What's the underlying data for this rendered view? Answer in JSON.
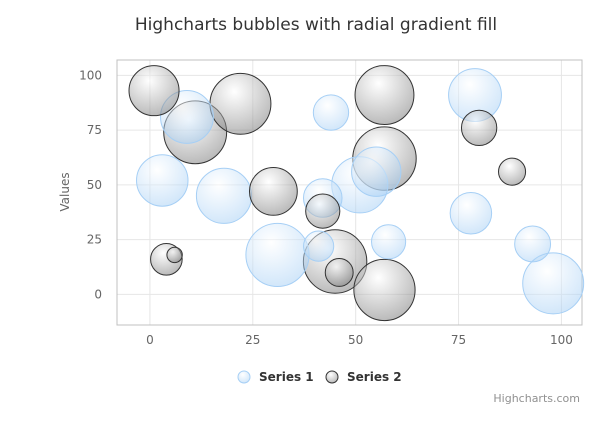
{
  "chart_data": {
    "type": "scatter",
    "subtype": "bubble",
    "title": "Highcharts bubbles with radial gradient fill",
    "xlabel": "",
    "ylabel": "Values",
    "xlim": [
      -8,
      105
    ],
    "ylim": [
      -14,
      107
    ],
    "xticks": [
      0,
      25,
      50,
      75,
      100
    ],
    "yticks": [
      0,
      25,
      50,
      75,
      100
    ],
    "grid": true,
    "legend_position": "bottom-center",
    "credits": "Highcharts.com",
    "series": [
      {
        "name": "Series 1",
        "color_center": "#ffffff",
        "color_edge": "#a6cff5",
        "stroke": "#a6cff5",
        "points": [
          {
            "x": 9,
            "y": 81,
            "z": 63
          },
          {
            "x": 98,
            "y": 5,
            "z": 89
          },
          {
            "x": 51,
            "y": 50,
            "z": 73
          },
          {
            "x": 41,
            "y": 22,
            "z": 14
          },
          {
            "x": 58,
            "y": 24,
            "z": 20
          },
          {
            "x": 78,
            "y": 37,
            "z": 34
          },
          {
            "x": 55,
            "y": 56,
            "z": 53
          },
          {
            "x": 18,
            "y": 45,
            "z": 70
          },
          {
            "x": 42,
            "y": 44,
            "z": 28
          },
          {
            "x": 3,
            "y": 52,
            "z": 59
          },
          {
            "x": 31,
            "y": 18,
            "z": 97
          },
          {
            "x": 79,
            "y": 91,
            "z": 63
          },
          {
            "x": 93,
            "y": 23,
            "z": 23
          },
          {
            "x": 44,
            "y": 83,
            "z": 22
          }
        ]
      },
      {
        "name": "Series 2",
        "color_center": "#ffffff",
        "color_edge": "#777777",
        "stroke": "#333333",
        "points": [
          {
            "x": 42,
            "y": 38,
            "z": 20
          },
          {
            "x": 6,
            "y": 18,
            "z": 1
          },
          {
            "x": 1,
            "y": 93,
            "z": 55
          },
          {
            "x": 57,
            "y": 2,
            "z": 90
          },
          {
            "x": 80,
            "y": 76,
            "z": 22
          },
          {
            "x": 11,
            "y": 74,
            "z": 96
          },
          {
            "x": 88,
            "y": 56,
            "z": 10
          },
          {
            "x": 30,
            "y": 47,
            "z": 49
          },
          {
            "x": 57,
            "y": 62,
            "z": 98
          },
          {
            "x": 4,
            "y": 16,
            "z": 16
          },
          {
            "x": 46,
            "y": 10,
            "z": 11
          },
          {
            "x": 22,
            "y": 87,
            "z": 89
          },
          {
            "x": 57,
            "y": 91,
            "z": 82
          },
          {
            "x": 45,
            "y": 15,
            "z": 98
          }
        ]
      }
    ]
  }
}
